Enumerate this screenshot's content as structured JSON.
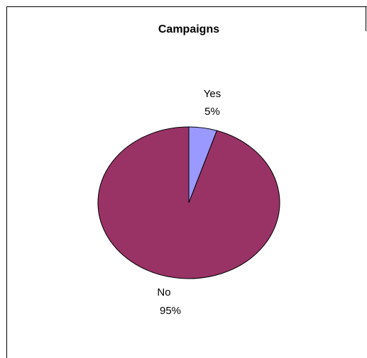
{
  "chart_data": {
    "type": "pie",
    "title": "Campaigns",
    "slices": [
      {
        "label": "Yes",
        "value": 5,
        "value_label": "5%",
        "color": "#9999ff"
      },
      {
        "label": "No",
        "value": 95,
        "value_label": "95%",
        "color": "#993366"
      }
    ],
    "start_angle_deg": 0,
    "direction": "clockwise",
    "legend": "none"
  }
}
